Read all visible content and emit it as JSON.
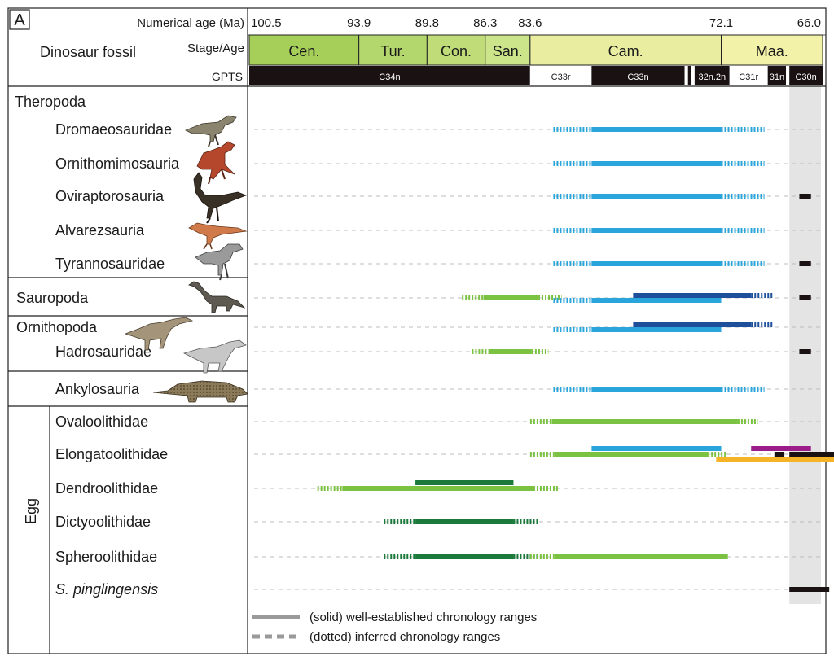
{
  "chart_data": {
    "type": "range",
    "panel_label": "A",
    "header": {
      "age_label": "Numerical age (Ma)",
      "fossil_label": "Dinosaur fossil",
      "stage_label": "Stage/Age",
      "gpts_label": "GPTS"
    },
    "age_ticks": [
      "100.5",
      "93.9",
      "89.8",
      "86.3",
      "83.6",
      "72.1",
      "66.0"
    ],
    "stages": [
      {
        "name": "Cen.",
        "start": 100.5,
        "end": 93.9,
        "color": "#a6cf5a"
      },
      {
        "name": "Tur.",
        "start": 93.9,
        "end": 89.8,
        "color": "#b3d66d"
      },
      {
        "name": "Con.",
        "start": 89.8,
        "end": 86.3,
        "color": "#c0dc78"
      },
      {
        "name": "San.",
        "start": 86.3,
        "end": 83.6,
        "color": "#cce48a"
      },
      {
        "name": "Cam.",
        "start": 83.6,
        "end": 72.1,
        "color": "#e8eda0"
      },
      {
        "name": "Maa.",
        "start": 72.1,
        "end": 66.0,
        "color": "#f2f2a8"
      }
    ],
    "gpts": [
      {
        "name": "C34n",
        "start": 100.5,
        "end": 83.6,
        "fill": "#1a1212"
      },
      {
        "name": "C33r",
        "start": 83.6,
        "end": 79.9,
        "fill": "#ffffff"
      },
      {
        "name": "C33n",
        "start": 79.9,
        "end": 74.3,
        "fill": "#1a1212"
      },
      {
        "name": "",
        "start": 74.3,
        "end": 74.1,
        "fill": "#ffffff"
      },
      {
        "name": "",
        "start": 74.1,
        "end": 73.9,
        "fill": "#1a1212"
      },
      {
        "name": "",
        "start": 73.9,
        "end": 73.7,
        "fill": "#ffffff"
      },
      {
        "name": "32n.2n",
        "start": 73.7,
        "end": 71.6,
        "fill": "#1a1212"
      },
      {
        "name": "C31r",
        "start": 71.6,
        "end": 69.3,
        "fill": "#ffffff"
      },
      {
        "name": "31n",
        "start": 69.3,
        "end": 68.2,
        "fill": "#1a1212"
      },
      {
        "name": "",
        "start": 68.2,
        "end": 68.0,
        "fill": "#ffffff"
      },
      {
        "name": "C30n",
        "start": 68.0,
        "end": 66.0,
        "fill": "#1a1212"
      }
    ],
    "highlight_band": {
      "start": 68.0,
      "end": 66.0,
      "color": "#e4e4e4"
    },
    "groups": [
      {
        "name": "Theropoda",
        "style": "normal"
      },
      {
        "name": "Sauropoda",
        "style": "normal"
      },
      {
        "name": "Ornithopoda",
        "style": "normal"
      },
      {
        "name": "Egg",
        "style": "rotated"
      }
    ],
    "taxa": [
      {
        "name": "Dromaeosauridae",
        "group": "Theropoda",
        "italic": false
      },
      {
        "name": "Ornithomimosauria",
        "group": "Theropoda",
        "italic": false
      },
      {
        "name": "Oviraptorosauria",
        "group": "Theropoda",
        "italic": false
      },
      {
        "name": "Alvarezsauria",
        "group": "Theropoda",
        "italic": false
      },
      {
        "name": "Tyrannosauridae",
        "group": "Theropoda",
        "italic": false
      },
      {
        "name": "Sauropoda",
        "group": "Sauropoda",
        "italic": false
      },
      {
        "name": "Ornithopoda",
        "group": "Ornithopoda",
        "italic": false
      },
      {
        "name": "Hadrosauridae",
        "group": "Ornithopoda",
        "italic": false
      },
      {
        "name": "Ankylosauria",
        "group": "Ankylosauria",
        "italic": false
      },
      {
        "name": "Ovaloolithidae",
        "group": "Egg",
        "italic": false
      },
      {
        "name": "Elongatoolithidae",
        "group": "Egg",
        "italic": false
      },
      {
        "name": "Dendroolithidae",
        "group": "Egg",
        "italic": false
      },
      {
        "name": "Dictyoolithidae",
        "group": "Egg",
        "italic": false
      },
      {
        "name": "Spheroolithidae",
        "group": "Egg",
        "italic": false
      },
      {
        "name": "S. pinglingensis",
        "group": "Egg",
        "italic": true
      }
    ],
    "ranges": [
      {
        "taxon": "Dromaeosauridae",
        "start": 79.9,
        "end": 72.1,
        "style": "solid",
        "color": "#2aa5dc"
      },
      {
        "taxon": "Dromaeosauridae",
        "start": 82.2,
        "end": 79.9,
        "style": "dotted",
        "color": "#2aa5dc"
      },
      {
        "taxon": "Dromaeosauridae",
        "start": 72.1,
        "end": 69.5,
        "style": "dotted",
        "color": "#2aa5dc"
      },
      {
        "taxon": "Ornithomimosauria",
        "start": 79.9,
        "end": 72.1,
        "style": "solid",
        "color": "#2aa5dc"
      },
      {
        "taxon": "Ornithomimosauria",
        "start": 82.2,
        "end": 79.9,
        "style": "dotted",
        "color": "#2aa5dc"
      },
      {
        "taxon": "Ornithomimosauria",
        "start": 72.1,
        "end": 69.5,
        "style": "dotted",
        "color": "#2aa5dc"
      },
      {
        "taxon": "Oviraptorosauria",
        "start": 79.9,
        "end": 72.1,
        "style": "solid",
        "color": "#2aa5dc"
      },
      {
        "taxon": "Oviraptorosauria",
        "start": 82.2,
        "end": 79.9,
        "style": "dotted",
        "color": "#2aa5dc"
      },
      {
        "taxon": "Oviraptorosauria",
        "start": 72.1,
        "end": 69.5,
        "style": "dotted",
        "color": "#2aa5dc"
      },
      {
        "taxon": "Oviraptorosauria",
        "start": 67.4,
        "end": 66.7,
        "style": "solid",
        "color": "#1a1212"
      },
      {
        "taxon": "Alvarezsauria",
        "start": 79.9,
        "end": 72.1,
        "style": "solid",
        "color": "#2aa5dc"
      },
      {
        "taxon": "Alvarezsauria",
        "start": 82.2,
        "end": 79.9,
        "style": "dotted",
        "color": "#2aa5dc"
      },
      {
        "taxon": "Alvarezsauria",
        "start": 72.1,
        "end": 69.5,
        "style": "dotted",
        "color": "#2aa5dc"
      },
      {
        "taxon": "Tyrannosauridae",
        "start": 79.9,
        "end": 72.1,
        "style": "solid",
        "color": "#2aa5dc"
      },
      {
        "taxon": "Tyrannosauridae",
        "start": 82.2,
        "end": 79.9,
        "style": "dotted",
        "color": "#2aa5dc"
      },
      {
        "taxon": "Tyrannosauridae",
        "start": 72.1,
        "end": 69.5,
        "style": "dotted",
        "color": "#2aa5dc"
      },
      {
        "taxon": "Tyrannosauridae",
        "start": 67.4,
        "end": 66.7,
        "style": "solid",
        "color": "#1a1212"
      },
      {
        "taxon": "Sauropoda",
        "start": 86.4,
        "end": 83.1,
        "style": "solid",
        "color": "#7cc242"
      },
      {
        "taxon": "Sauropoda",
        "start": 87.7,
        "end": 86.4,
        "style": "dotted",
        "color": "#7cc242"
      },
      {
        "taxon": "Sauropoda",
        "start": 83.1,
        "end": 81.7,
        "style": "dotted",
        "color": "#7cc242"
      },
      {
        "taxon": "Sauropoda",
        "start": 79.9,
        "end": 72.1,
        "style": "solid",
        "color": "#2aa5dc",
        "offset": 3
      },
      {
        "taxon": "Sauropoda",
        "start": 82.2,
        "end": 79.9,
        "style": "dotted",
        "color": "#2aa5dc",
        "offset": 3
      },
      {
        "taxon": "Sauropoda",
        "start": 77.4,
        "end": 70.3,
        "style": "solid",
        "color": "#1e4f9a",
        "offset": -3
      },
      {
        "taxon": "Sauropoda",
        "start": 70.3,
        "end": 69.0,
        "style": "dotted",
        "color": "#1e4f9a",
        "offset": -3
      },
      {
        "taxon": "Sauropoda",
        "start": 67.4,
        "end": 66.7,
        "style": "solid",
        "color": "#1a1212"
      },
      {
        "taxon": "Ornithopoda",
        "start": 79.9,
        "end": 72.1,
        "style": "solid",
        "color": "#2aa5dc",
        "offset": 3
      },
      {
        "taxon": "Ornithopoda",
        "start": 82.2,
        "end": 79.9,
        "style": "dotted",
        "color": "#2aa5dc",
        "offset": 3
      },
      {
        "taxon": "Ornithopoda",
        "start": 77.4,
        "end": 70.3,
        "style": "solid",
        "color": "#1e4f9a",
        "offset": -3
      },
      {
        "taxon": "Ornithopoda",
        "start": 70.3,
        "end": 69.0,
        "style": "dotted",
        "color": "#1e4f9a",
        "offset": -3
      },
      {
        "taxon": "Hadrosauridae",
        "start": 86.1,
        "end": 83.5,
        "style": "solid",
        "color": "#7cc242"
      },
      {
        "taxon": "Hadrosauridae",
        "start": 87.1,
        "end": 86.1,
        "style": "dotted",
        "color": "#7cc242"
      },
      {
        "taxon": "Hadrosauridae",
        "start": 83.5,
        "end": 82.5,
        "style": "dotted",
        "color": "#7cc242"
      },
      {
        "taxon": "Hadrosauridae",
        "start": 67.4,
        "end": 66.7,
        "style": "solid",
        "color": "#1a1212"
      },
      {
        "taxon": "Ankylosauria",
        "start": 79.9,
        "end": 72.1,
        "style": "solid",
        "color": "#2aa5dc"
      },
      {
        "taxon": "Ankylosauria",
        "start": 82.2,
        "end": 79.9,
        "style": "dotted",
        "color": "#2aa5dc"
      },
      {
        "taxon": "Ankylosauria",
        "start": 72.1,
        "end": 69.5,
        "style": "dotted",
        "color": "#2aa5dc"
      },
      {
        "taxon": "Ovaloolithidae",
        "start": 82.3,
        "end": 71.1,
        "style": "solid",
        "color": "#7cc242"
      },
      {
        "taxon": "Ovaloolithidae",
        "start": 83.6,
        "end": 82.3,
        "style": "dotted",
        "color": "#7cc242"
      },
      {
        "taxon": "Ovaloolithidae",
        "start": 71.1,
        "end": 69.9,
        "style": "dotted",
        "color": "#7cc242"
      },
      {
        "taxon": "Elongatoolithidae",
        "start": 79.9,
        "end": 72.1,
        "style": "solid",
        "color": "#2aa5dc",
        "offset": -7
      },
      {
        "taxon": "Elongatoolithidae",
        "start": 70.3,
        "end": 66.7,
        "style": "solid",
        "color": "#9b1d8a",
        "offset": -7
      },
      {
        "taxon": "Elongatoolithidae",
        "start": 82.1,
        "end": 72.9,
        "style": "solid",
        "color": "#7cc242"
      },
      {
        "taxon": "Elongatoolithidae",
        "start": 83.6,
        "end": 82.1,
        "style": "dotted",
        "color": "#7cc242"
      },
      {
        "taxon": "Elongatoolithidae",
        "start": 68.0,
        "end": 63.4,
        "style": "solid",
        "color": "#1a1212"
      },
      {
        "taxon": "Elongatoolithidae",
        "start": 68.9,
        "end": 68.3,
        "style": "solid",
        "color": "#1a1212"
      },
      {
        "taxon": "Elongatoolithidae",
        "start": 72.9,
        "end": 71.8,
        "style": "dotted",
        "color": "#7cc242"
      },
      {
        "taxon": "Elongatoolithidae",
        "start": 72.4,
        "end": 65.2,
        "style": "solid",
        "color": "#f5b427",
        "offset": 7
      },
      {
        "taxon": "Dendroolithidae",
        "start": 90.5,
        "end": 84.6,
        "style": "solid",
        "color": "#1b7a3b",
        "offset": -7
      },
      {
        "taxon": "Dendroolithidae",
        "start": 94.9,
        "end": 83.4,
        "style": "solid",
        "color": "#7cc242"
      },
      {
        "taxon": "Dendroolithidae",
        "start": 96.4,
        "end": 94.9,
        "style": "dotted",
        "color": "#7cc242"
      },
      {
        "taxon": "Dendroolithidae",
        "start": 83.4,
        "end": 81.9,
        "style": "dotted",
        "color": "#7cc242"
      },
      {
        "taxon": "Dictyoolithidae",
        "start": 90.5,
        "end": 84.6,
        "style": "solid",
        "color": "#1b7a3b"
      },
      {
        "taxon": "Dictyoolithidae",
        "start": 92.4,
        "end": 90.5,
        "style": "dotted",
        "color": "#1b7a3b"
      },
      {
        "taxon": "Dictyoolithidae",
        "start": 84.6,
        "end": 83.1,
        "style": "dotted",
        "color": "#1b7a3b"
      },
      {
        "taxon": "Spheroolithidae",
        "start": 90.5,
        "end": 84.6,
        "style": "solid",
        "color": "#1b7a3b"
      },
      {
        "taxon": "Spheroolithidae",
        "start": 92.4,
        "end": 90.5,
        "style": "dotted",
        "color": "#1b7a3b"
      },
      {
        "taxon": "Spheroolithidae",
        "start": 84.6,
        "end": 83.1,
        "style": "dotted",
        "color": "#1b7a3b"
      },
      {
        "taxon": "Spheroolithidae",
        "start": 82.1,
        "end": 71.7,
        "style": "solid",
        "color": "#7cc242"
      },
      {
        "taxon": "Spheroolithidae",
        "start": 83.6,
        "end": 82.1,
        "style": "dotted",
        "color": "#7cc242"
      },
      {
        "taxon": "S. pinglingensis",
        "start": 68.0,
        "end": 65.6,
        "style": "solid",
        "color": "#1a1212"
      }
    ],
    "legend": [
      {
        "style": "solid",
        "label": "(solid) well-established chronology ranges"
      },
      {
        "style": "dotted",
        "label": "(dotted) inferred chronology ranges"
      }
    ]
  }
}
